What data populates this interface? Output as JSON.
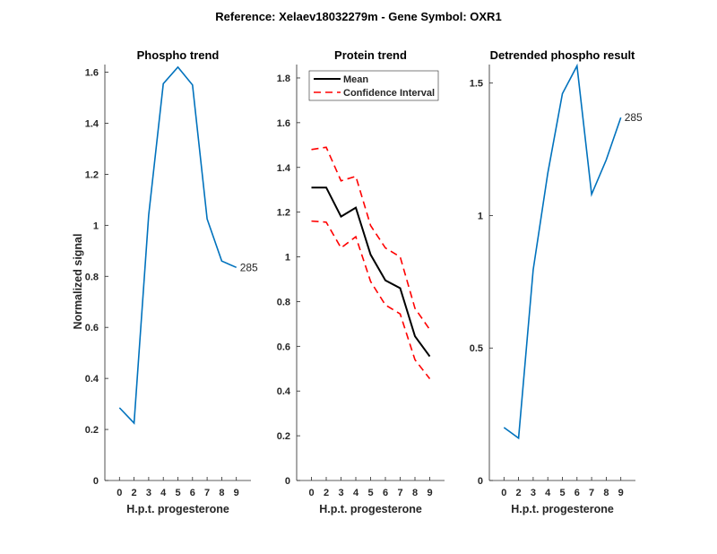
{
  "suptitle": "Reference:  Xelaev18032279m - Gene Symbol:  OXR1",
  "chart_data": [
    {
      "type": "line",
      "title": "Phospho trend",
      "xlabel": "H.p.t. progesterone",
      "ylabel": "Normalized signal",
      "categories": [
        "0",
        "2",
        "3",
        "4",
        "5",
        "6",
        "7",
        "8",
        "9"
      ],
      "ylim": [
        0,
        1.63
      ],
      "yticks": [
        "0",
        "0.2",
        "0.4",
        "0.6",
        "0.8",
        "1",
        "1.2",
        "1.4",
        "1.6"
      ],
      "ytick_values": [
        0,
        0.2,
        0.4,
        0.6,
        0.8,
        1,
        1.2,
        1.4,
        1.6
      ],
      "series": [
        {
          "name": "285",
          "color": "#0072BD",
          "values": [
            0.285,
            0.225,
            1.04,
            1.555,
            1.62,
            1.55,
            1.025,
            0.86,
            0.835
          ]
        }
      ],
      "end_label": "285"
    },
    {
      "type": "line",
      "title": "Protein trend",
      "xlabel": "H.p.t. progesterone",
      "ylabel": "",
      "categories": [
        "0",
        "2",
        "3",
        "4",
        "5",
        "6",
        "7",
        "8",
        "9"
      ],
      "ylim": [
        0,
        1.86
      ],
      "yticks": [
        "0",
        "0.2",
        "0.4",
        "0.6",
        "0.8",
        "1",
        "1.2",
        "1.4",
        "1.6",
        "1.8"
      ],
      "ytick_values": [
        0,
        0.2,
        0.4,
        0.6,
        0.8,
        1,
        1.2,
        1.4,
        1.6,
        1.8
      ],
      "legend": {
        "placement": "top-left",
        "entries": [
          "Mean",
          "Confidence Interval"
        ]
      },
      "series": [
        {
          "name": "Mean",
          "color": "#000000",
          "dashed": false,
          "values": [
            1.31,
            1.31,
            1.18,
            1.22,
            1.01,
            0.895,
            0.86,
            0.645,
            0.555
          ]
        },
        {
          "name": "Confidence Interval (upper)",
          "color": "#FF0000",
          "dashed": true,
          "values": [
            1.48,
            1.49,
            1.34,
            1.36,
            1.14,
            1.04,
            1.0,
            0.77,
            0.675
          ]
        },
        {
          "name": "Confidence Interval (lower)",
          "color": "#FF0000",
          "dashed": true,
          "values": [
            1.16,
            1.155,
            1.04,
            1.09,
            0.89,
            0.785,
            0.745,
            0.54,
            0.455
          ]
        }
      ]
    },
    {
      "type": "line",
      "title": "Detrended phospho result",
      "xlabel": "H.p.t. progesterone",
      "ylabel": "",
      "categories": [
        "0",
        "2",
        "3",
        "4",
        "5",
        "6",
        "7",
        "8",
        "9"
      ],
      "ylim": [
        0,
        1.57
      ],
      "yticks": [
        "0",
        "0.5",
        "1",
        "1.5"
      ],
      "ytick_values": [
        0,
        0.5,
        1,
        1.5
      ],
      "series": [
        {
          "name": "285",
          "color": "#0072BD",
          "values": [
            0.2,
            0.16,
            0.795,
            1.16,
            1.46,
            1.565,
            1.08,
            1.21,
            1.37
          ]
        }
      ],
      "end_label": "285"
    }
  ]
}
